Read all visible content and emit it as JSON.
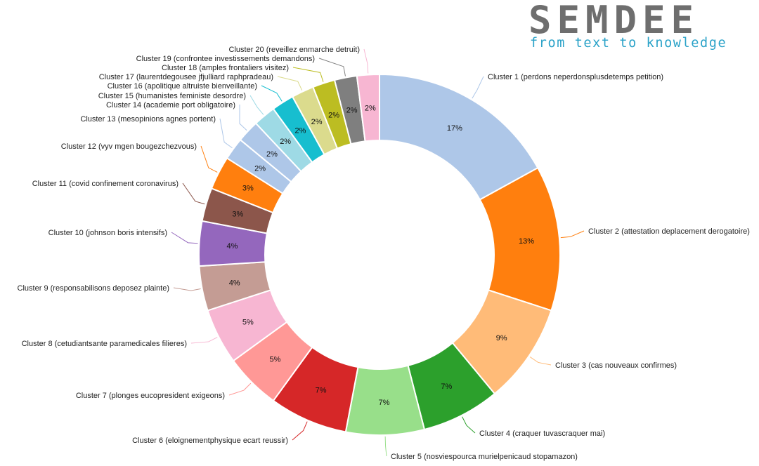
{
  "logo": {
    "wordmark": "SEMDEE",
    "tagline": "from text to knowledge"
  },
  "chart_data": {
    "type": "pie",
    "variant": "donut",
    "title": "",
    "legend": "labels beside slices with leader lines",
    "slices": [
      {
        "label": "Cluster 1 (perdons neperdonsplusdetemps petition)",
        "value": 17,
        "display": "17%",
        "color": "#aec7e8"
      },
      {
        "label": "Cluster 2 (attestation deplacement derogatoire)",
        "value": 13,
        "display": "13%",
        "color": "#ff7f0e"
      },
      {
        "label": "Cluster 3 (cas nouveaux confirmes)",
        "value": 9,
        "display": "9%",
        "color": "#ffbb78"
      },
      {
        "label": "Cluster 4 (craquer tuvascraquer mai)",
        "value": 7,
        "display": "7%",
        "color": "#2ca02c"
      },
      {
        "label": "Cluster 5 (nosviespourca murielpenicaud stopamazon)",
        "value": 7,
        "display": "7%",
        "color": "#98df8a"
      },
      {
        "label": "Cluster 6 (eloignementphysique ecart reussir)",
        "value": 7,
        "display": "7%",
        "color": "#d62728"
      },
      {
        "label": "Cluster 7 (plonges eucopresident exigeons)",
        "value": 5,
        "display": "5%",
        "color": "#ff9896"
      },
      {
        "label": "Cluster 8 (cetudiantsante paramedicales filieres)",
        "value": 5,
        "display": "5%",
        "color": "#f7b6d2"
      },
      {
        "label": "Cluster 9 (responsabilisons deposez plainte)",
        "value": 4,
        "display": "4%",
        "color": "#c49c94"
      },
      {
        "label": "Cluster 10 (johnson boris intensifs)",
        "value": 4,
        "display": "4%",
        "color": "#9467bd"
      },
      {
        "label": "Cluster 11 (covid confinement coronavirus)",
        "value": 3,
        "display": "3%",
        "color": "#8c564b"
      },
      {
        "label": "Cluster 12 (vyv mgen bougezchezvous)",
        "value": 3,
        "display": "3%",
        "color": "#ff7f0e"
      },
      {
        "label": "Cluster 13 (mesopinions agnes portent)",
        "value": 2,
        "display": "2%",
        "color": "#aec7e8"
      },
      {
        "label": "Cluster 14 (academie port obligatoire)",
        "value": 2,
        "display": "2%",
        "color": "#aec7e8"
      },
      {
        "label": "Cluster 15 (humanistes feministe desordre)",
        "value": 2,
        "display": "2%",
        "color": "#9edae5"
      },
      {
        "label": "Cluster 16 (apolitique altruiste bienveillante)",
        "value": 2,
        "display": "2%",
        "color": "#17becf"
      },
      {
        "label": "Cluster 17 (laurentdegousee jfjulliard raphpradeau)",
        "value": 2,
        "display": "2%",
        "color": "#dbdb8d"
      },
      {
        "label": "Cluster 18 (amples frontaliers visitez)",
        "value": 2,
        "display": "2%",
        "color": "#bcbd22"
      },
      {
        "label": "Cluster 19 (confrontee investissements demandons)",
        "value": 2,
        "display": "2%",
        "color": "#7f7f7f"
      },
      {
        "label": "Cluster 20 (reveillez enmarche detruit)",
        "value": 2,
        "display": "2%",
        "color": "#f7b6d2"
      }
    ]
  }
}
